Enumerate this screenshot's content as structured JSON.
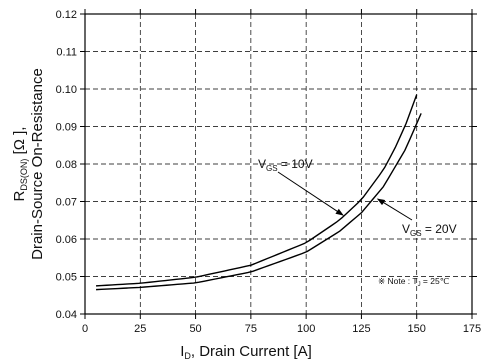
{
  "chart_data": {
    "type": "line",
    "xlabel": {
      "main": "I",
      "sub": "D",
      "rest": ", Drain Current [A]"
    },
    "ylabel": {
      "line1_main": "R",
      "line1_sub": "DS(ON)",
      "line1_rest": " [Ω ],",
      "line2": "Drain-Source On-Resistance"
    },
    "xlim": [
      0,
      175
    ],
    "ylim": [
      0.04,
      0.12
    ],
    "xticks": [
      0,
      25,
      50,
      75,
      100,
      125,
      150,
      175
    ],
    "yticks": [
      0.04,
      0.05,
      0.06,
      0.07,
      0.08,
      0.09,
      0.1,
      0.11,
      0.12
    ],
    "grid": true,
    "series": [
      {
        "name": "VGS = 10V",
        "x": [
          5,
          25,
          50,
          75,
          100,
          115,
          125,
          135,
          140,
          145,
          150
        ],
        "y": [
          0.0475,
          0.0482,
          0.0498,
          0.053,
          0.059,
          0.065,
          0.0705,
          0.0785,
          0.084,
          0.0905,
          0.0985
        ]
      },
      {
        "name": "VGS = 20V",
        "x": [
          5,
          25,
          50,
          75,
          100,
          115,
          125,
          135,
          140,
          145,
          152
        ],
        "y": [
          0.0465,
          0.0471,
          0.0483,
          0.0512,
          0.0565,
          0.062,
          0.067,
          0.074,
          0.079,
          0.084,
          0.0935
        ]
      }
    ],
    "annotations": [
      {
        "main": "V",
        "sub": "GS",
        "rest": " = 10V",
        "target_series": 0
      },
      {
        "main": "V",
        "sub": "GS",
        "rest": " = 20V",
        "target_series": 1
      }
    ],
    "note": {
      "prefix": "※ Note : T",
      "sub": "J",
      "rest": " = 25℃"
    }
  }
}
